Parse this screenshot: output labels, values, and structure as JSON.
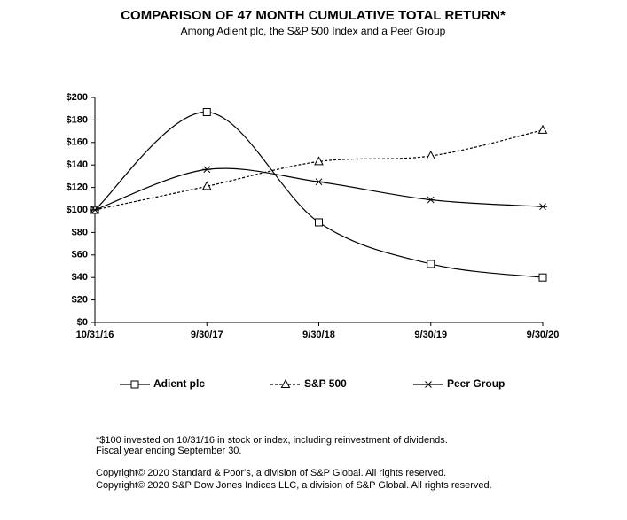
{
  "chart_data": {
    "type": "line",
    "title": "COMPARISON OF 47 MONTH CUMULATIVE TOTAL RETURN*",
    "subtitle": "Among Adient plc, the S&P 500 Index and a Peer Group",
    "categories": [
      "10/31/16",
      "9/30/17",
      "9/30/18",
      "9/30/19",
      "9/30/20"
    ],
    "series": [
      {
        "name": "Adient plc",
        "color": "#000000",
        "marker": "square",
        "dashed": false,
        "values": [
          100,
          187,
          89,
          52,
          40
        ]
      },
      {
        "name": "S&P 500",
        "color": "#000000",
        "marker": "triangle",
        "dashed": true,
        "values": [
          100,
          121,
          143,
          148,
          171
        ]
      },
      {
        "name": "Peer Group",
        "color": "#000000",
        "marker": "star",
        "dashed": false,
        "values": [
          100,
          136,
          125,
          109,
          103
        ]
      }
    ],
    "ylim": [
      0,
      200
    ],
    "yticks": [
      {
        "value": 0,
        "label": "$0"
      },
      {
        "value": 20,
        "label": "$20"
      },
      {
        "value": 40,
        "label": "$40"
      },
      {
        "value": 60,
        "label": "$60"
      },
      {
        "value": 80,
        "label": "$80"
      },
      {
        "value": 100,
        "label": "$100"
      },
      {
        "value": 120,
        "label": "$120"
      },
      {
        "value": 140,
        "label": "$140"
      },
      {
        "value": 160,
        "label": "$160"
      },
      {
        "value": 180,
        "label": "$180"
      },
      {
        "value": 200,
        "label": "$200"
      }
    ],
    "grid": false,
    "legend": "bottom",
    "notes": [
      "*$100 invested on 10/31/16 in stock or index, including reinvestment of dividends.",
      "Fiscal year ending September 30.",
      "Copyright© 2020 Standard & Poor's, a division of S&P Global.  All rights reserved.",
      "Copyright© 2020 S&P Dow Jones Indices LLC, a division of S&P Global.  All rights reserved."
    ]
  }
}
